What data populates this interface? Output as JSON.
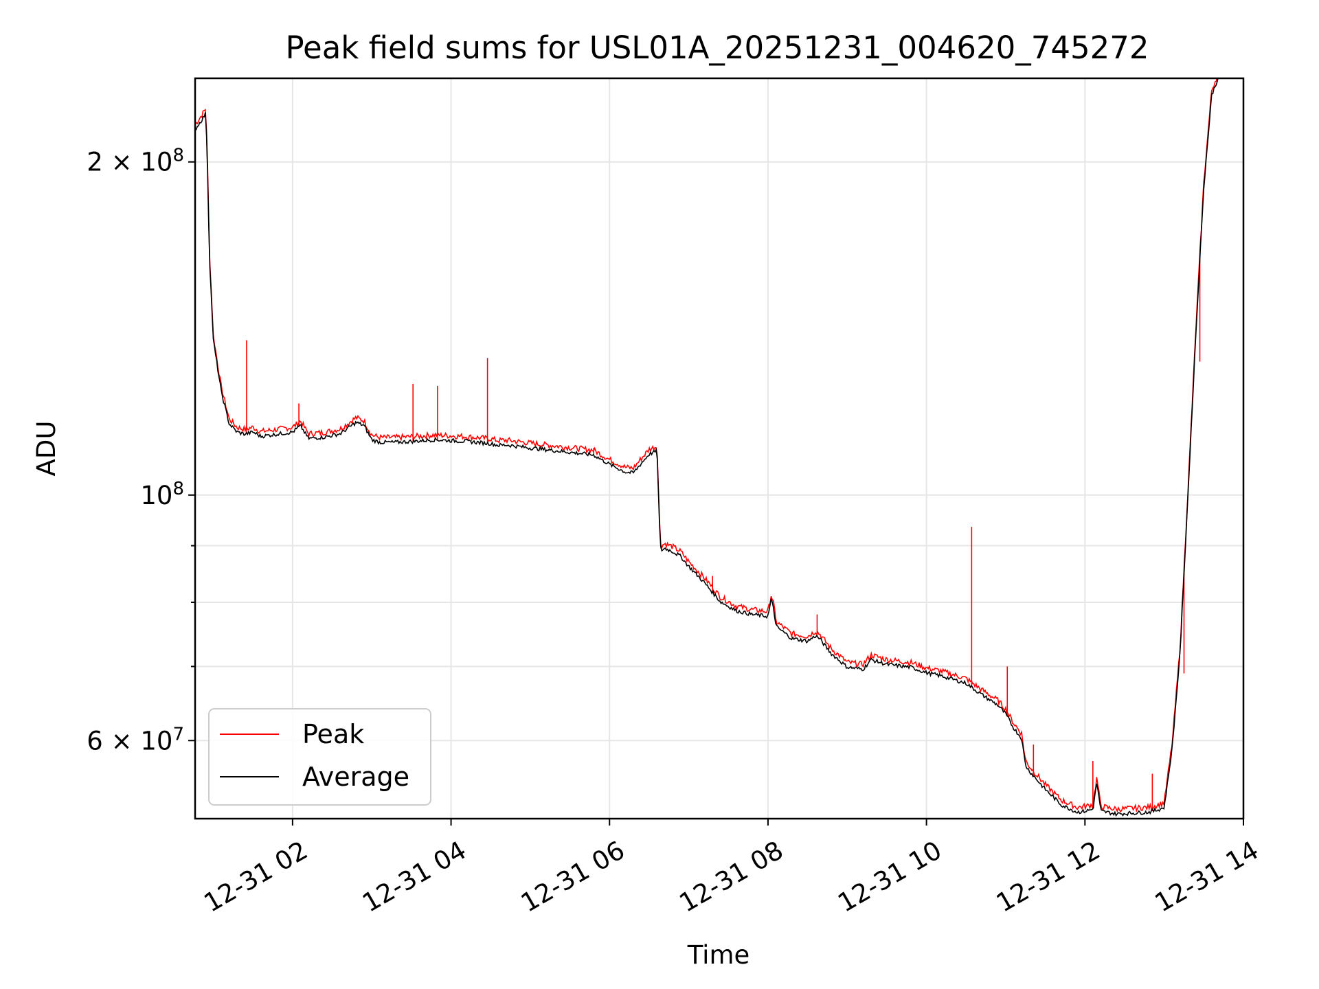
{
  "chart_data": {
    "type": "line",
    "title": "Peak field sums for USL01A_20251231_004620_745272",
    "xlabel": "Time",
    "ylabel": "ADU",
    "yscale": "log",
    "xlim_hours": [
      0.77,
      14.0
    ],
    "ylim": [
      51000000,
      238000000
    ],
    "grid": true,
    "legend_location": "lower-left",
    "x_ticks": [
      {
        "value": 2,
        "label": "12-31 02"
      },
      {
        "value": 4,
        "label": "12-31 04"
      },
      {
        "value": 6,
        "label": "12-31 06"
      },
      {
        "value": 8,
        "label": "12-31 08"
      },
      {
        "value": 10,
        "label": "12-31 10"
      },
      {
        "value": 12,
        "label": "12-31 12"
      },
      {
        "value": 14,
        "label": "12-31 14"
      }
    ],
    "y_major_ticks": [
      {
        "value": 200000000,
        "base": "2 × 10",
        "exp": "8"
      },
      {
        "value": 100000000,
        "base": "10",
        "exp": "8"
      },
      {
        "value": 60000000,
        "base": "6 × 10",
        "exp": "7"
      }
    ],
    "y_minor_ticks": [
      90000000,
      80000000,
      70000000,
      50000000
    ],
    "series": [
      {
        "name": "Average",
        "color": "#000000",
        "x_hours": [
          0.77,
          0.85,
          0.9,
          0.92,
          0.95,
          1.0,
          1.1,
          1.2,
          1.3,
          1.4,
          1.5,
          1.6,
          1.8,
          2.0,
          2.1,
          2.2,
          2.4,
          2.6,
          2.8,
          2.9,
          3.0,
          3.1,
          3.3,
          3.5,
          3.8,
          4.0,
          4.2,
          4.5,
          4.6,
          4.7,
          5.0,
          5.3,
          5.6,
          5.8,
          6.0,
          6.2,
          6.3,
          6.4,
          6.5,
          6.6,
          6.64,
          6.66,
          6.7,
          6.8,
          6.9,
          7.0,
          7.2,
          7.4,
          7.6,
          7.8,
          8.0,
          8.04,
          8.07,
          8.1,
          8.3,
          8.5,
          8.6,
          8.65,
          8.7,
          8.8,
          9.0,
          9.2,
          9.3,
          9.5,
          9.8,
          10.0,
          10.2,
          10.5,
          10.7,
          10.9,
          11.0,
          11.1,
          11.2,
          11.25,
          11.3,
          11.5,
          11.7,
          11.9,
          12.0,
          12.1,
          12.15,
          12.2,
          12.4,
          12.6,
          12.8,
          12.9,
          13.0,
          13.1,
          13.2,
          13.3,
          13.4,
          13.5,
          13.6,
          13.7
        ],
        "values": [
          214000000,
          218000000,
          221000000,
          208000000,
          165000000,
          138000000,
          124000000,
          116000000,
          114000000,
          113500000,
          114000000,
          113000000,
          113500000,
          114000000,
          115500000,
          112500000,
          112800000,
          113600000,
          116300000,
          115600000,
          112200000,
          111600000,
          111600000,
          111800000,
          112200000,
          112000000,
          111800000,
          111300000,
          110900000,
          111000000,
          110300000,
          109700000,
          109100000,
          108700000,
          106600000,
          104900000,
          104700000,
          106800000,
          108900000,
          109600000,
          89700000,
          89200000,
          89500000,
          88900000,
          88000000,
          86200000,
          83300000,
          80100000,
          78600000,
          78000000,
          77700000,
          80400000,
          79100000,
          76100000,
          74200000,
          73800000,
          74600000,
          74200000,
          73400000,
          71900000,
          69900000,
          69600000,
          71000000,
          70300000,
          69900000,
          69100000,
          68600000,
          67600000,
          66000000,
          64600000,
          63400000,
          61600000,
          60300000,
          57000000,
          56300000,
          54200000,
          52500000,
          51700000,
          51800000,
          52000000,
          55000000,
          51800000,
          51500000,
          51600000,
          51700000,
          51900000,
          52200000,
          59000000,
          72000000,
          100000000,
          140000000,
          190000000,
          230000000,
          240000000
        ]
      },
      {
        "name": "Peak",
        "color": "#ff0000",
        "spikes": [
          {
            "x_hours": 1.42,
            "value": 138000000
          },
          {
            "x_hours": 2.08,
            "value": 121000000
          },
          {
            "x_hours": 3.52,
            "value": 126000000
          },
          {
            "x_hours": 3.83,
            "value": 125500000
          },
          {
            "x_hours": 4.46,
            "value": 133000000
          },
          {
            "x_hours": 5.8,
            "value": 110300000
          },
          {
            "x_hours": 7.3,
            "value": 84500000
          },
          {
            "x_hours": 8.62,
            "value": 78000000
          },
          {
            "x_hours": 9.3,
            "value": 71500000
          },
          {
            "x_hours": 10.57,
            "value": 93600000
          },
          {
            "x_hours": 11.02,
            "value": 70000000
          },
          {
            "x_hours": 11.35,
            "value": 59500000
          },
          {
            "x_hours": 12.1,
            "value": 57500000
          },
          {
            "x_hours": 12.85,
            "value": 56000000
          },
          {
            "x_hours": 13.25,
            "value": 69000000
          },
          {
            "x_hours": 13.45,
            "value": 132000000
          }
        ]
      }
    ]
  }
}
